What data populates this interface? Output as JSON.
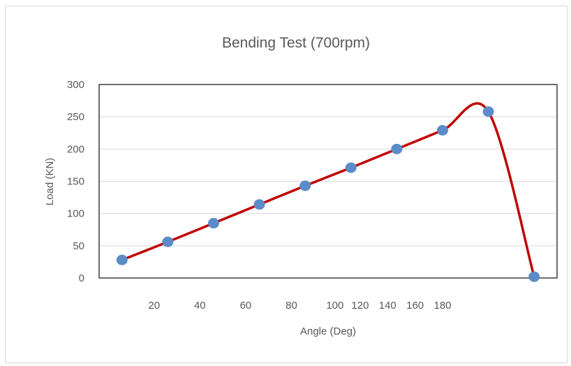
{
  "chart_data": {
    "type": "line",
    "title": "Bending Test (700rpm)",
    "xlabel": "Angle (Deg)",
    "ylabel": "Load (KN)",
    "ylim": [
      0,
      300
    ],
    "y_ticks": [
      "300",
      "250",
      "200",
      "150",
      "100",
      "50",
      "0"
    ],
    "x_tick_labels": [
      "20",
      "40",
      "60",
      "80",
      "100",
      "120",
      "140",
      "160",
      "180"
    ],
    "grid": true,
    "legend": "none",
    "smoothed": true,
    "series": [
      {
        "color": "#c00000",
        "marker_color": "#5b8cc9",
        "x": [
          1,
          2,
          3,
          4,
          5,
          6,
          7,
          8,
          9,
          10
        ],
        "values": [
          28,
          56,
          85,
          114,
          143,
          171,
          200,
          229,
          258,
          2
        ]
      }
    ]
  }
}
